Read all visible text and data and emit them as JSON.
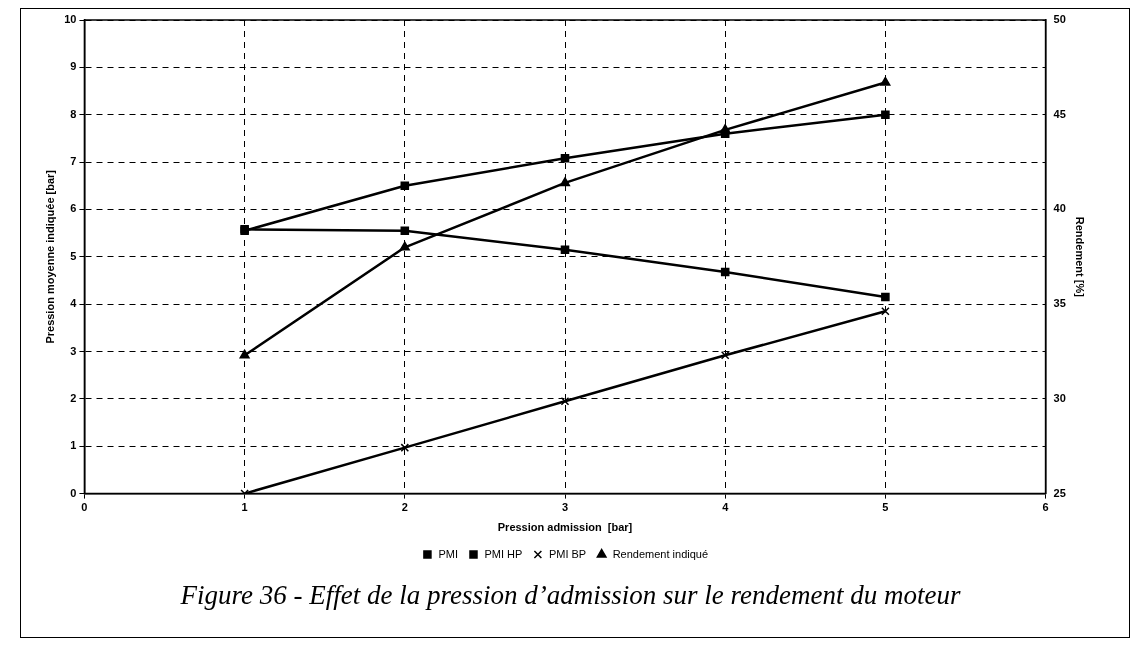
{
  "chart_data": {
    "type": "line",
    "xlabel": "Pression admission  [bar]",
    "ylabel": "Pression moyenne indiquée [bar]",
    "y2label": "Rendement [%]",
    "x": [
      1,
      2,
      3,
      4,
      5
    ],
    "xlim": [
      0,
      6
    ],
    "xticks": [
      0,
      1,
      2,
      3,
      4,
      5,
      6
    ],
    "ylim": [
      0,
      10
    ],
    "yticks": [
      0,
      1,
      2,
      3,
      4,
      5,
      6,
      7,
      8,
      9,
      10
    ],
    "y2lim": [
      25,
      50
    ],
    "y2ticks": [
      25,
      30,
      35,
      40,
      45,
      50
    ],
    "grid": true,
    "legend": "bottom",
    "line_style": "solid",
    "series": [
      {
        "name": "PMI",
        "color": "#000000",
        "marker": "square",
        "values": [
          5.55,
          6.5,
          7.08,
          7.6,
          8.0
        ]
      },
      {
        "name": "PMI HP",
        "color": "#000000",
        "marker": "square",
        "values": [
          5.58,
          5.55,
          5.15,
          4.68,
          4.15
        ]
      },
      {
        "name": "PMI BP",
        "color": "#000000",
        "marker": "cross",
        "values": [
          0,
          0.97,
          1.95,
          2.92,
          3.85
        ]
      },
      {
        "name": "Rendement indiqué",
        "color": "#000000",
        "marker": "triangle",
        "axis": "y2",
        "values": [
          32.3,
          38.0,
          41.4,
          44.2,
          46.7
        ]
      }
    ],
    "annotations": [
      "Figure 36 - Effet de  la pression d’admission sur le rendement du moteur"
    ]
  }
}
